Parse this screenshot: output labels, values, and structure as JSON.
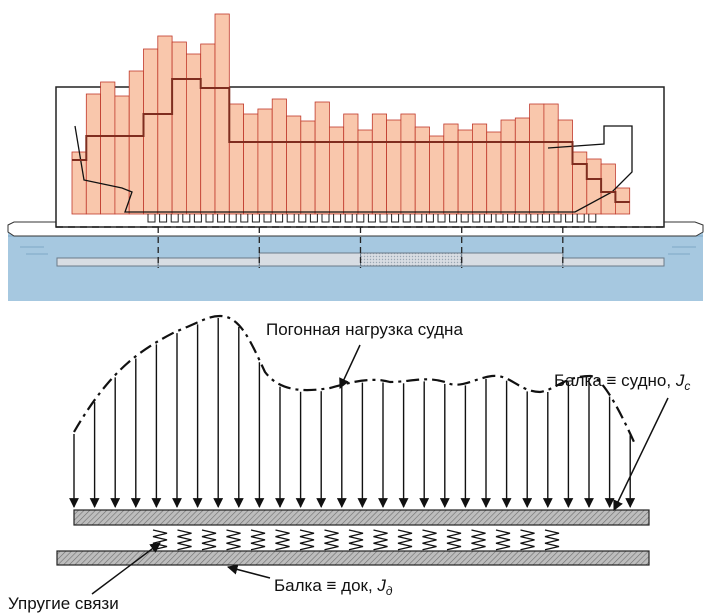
{
  "labels": {
    "ship_load": "Погонная нагрузка судна",
    "beam_ship_text": "Балка ≡ судно, ",
    "beam_ship_symbol": "J",
    "beam_ship_sub": "c",
    "beam_dock_text": "Балка ≡ док, ",
    "beam_dock_symbol": "J",
    "beam_dock_sub": "д",
    "elastic_links": "Упругие связи"
  },
  "load_distribution": {
    "bar_values": [
      62,
      120,
      132,
      118,
      143,
      165,
      178,
      172,
      160,
      170,
      200,
      110,
      100,
      105,
      115,
      98,
      93,
      112,
      87,
      100,
      84,
      100,
      94,
      100,
      87,
      78,
      90,
      84,
      90,
      82,
      94,
      96,
      110,
      110,
      94,
      62,
      55,
      50,
      26
    ],
    "ship_curve": [
      54,
      78,
      78,
      78,
      78,
      100,
      100,
      135,
      135,
      126,
      126,
      72,
      72,
      72,
      72,
      72,
      72,
      72,
      72,
      72,
      72,
      72,
      72,
      72,
      72,
      72,
      72,
      72,
      72,
      72,
      72,
      72,
      72,
      72,
      72,
      50,
      35,
      22,
      12
    ],
    "dock_sections": 6
  },
  "colors": {
    "bar_fill": "#f9c7ac",
    "bar_stroke": "#c0392b",
    "curve": "#7f2d1f",
    "water": "#a6c8e0",
    "dock_strip": "#d8dde3"
  }
}
